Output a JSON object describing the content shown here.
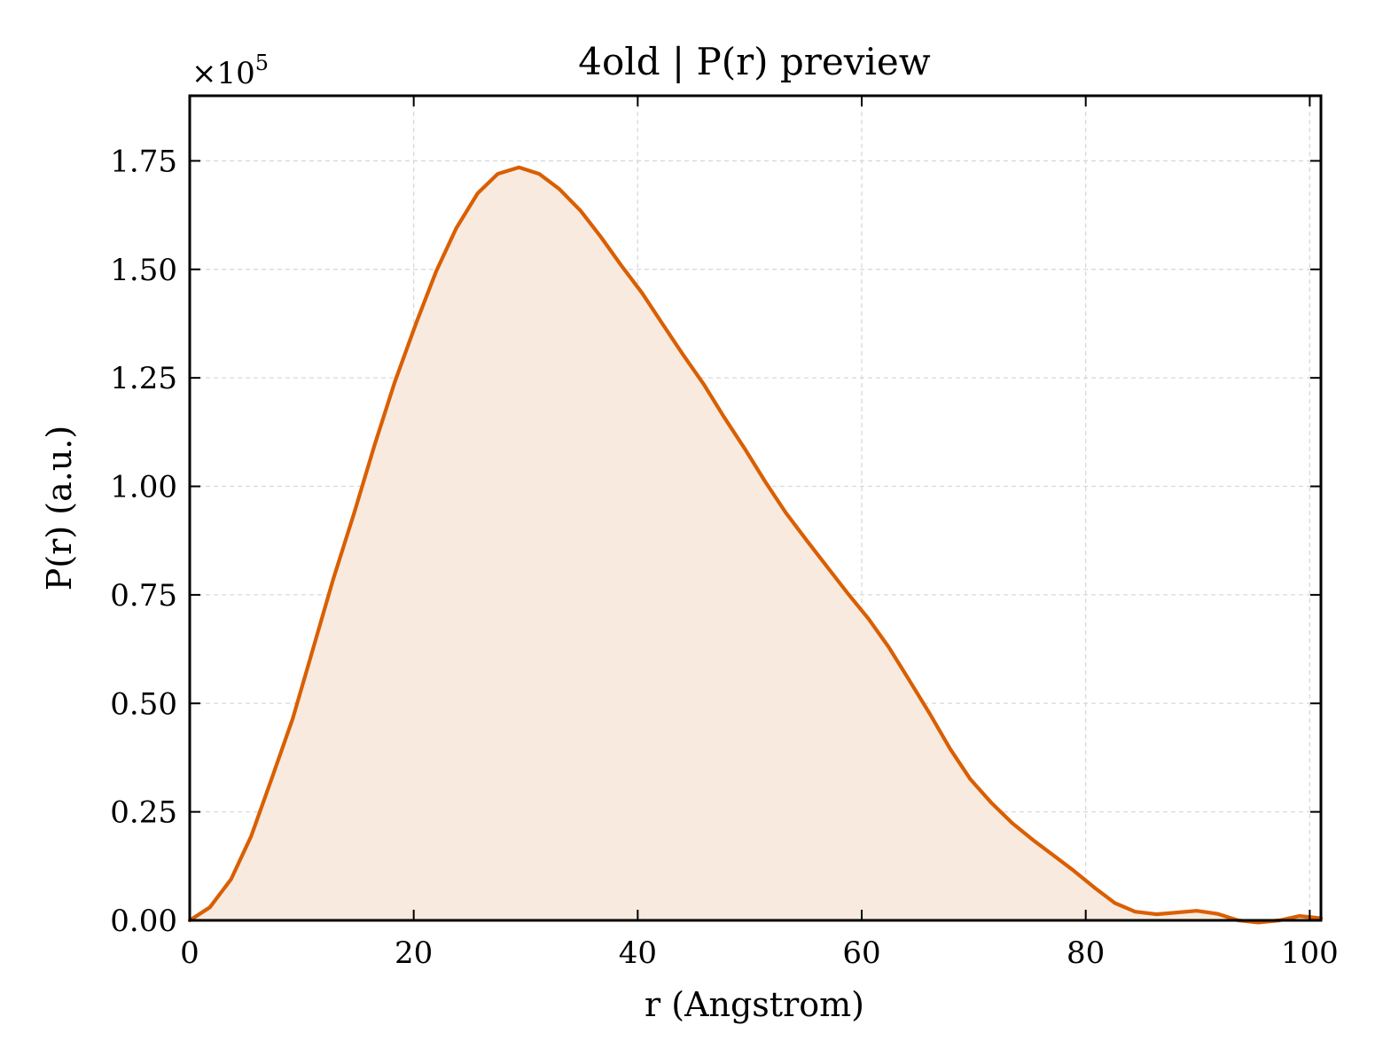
{
  "chart_data": {
    "type": "area",
    "title": "4old | P(r) preview",
    "xlabel": "r (Angstrom)",
    "ylabel": "P(r) (a.u.)",
    "y_multiplier_label": "×10",
    "y_multiplier_exponent": "5",
    "xlim": [
      0,
      101
    ],
    "ylim": [
      0,
      1.9
    ],
    "x_ticks": [
      0,
      20,
      40,
      60,
      80,
      100
    ],
    "x_tick_labels": [
      "0",
      "20",
      "40",
      "60",
      "80",
      "100"
    ],
    "y_ticks": [
      0,
      0.25,
      0.5,
      0.75,
      1.0,
      1.25,
      1.5,
      1.75
    ],
    "y_tick_labels": [
      "0.00",
      "0.25",
      "0.50",
      "0.75",
      "1.00",
      "1.25",
      "1.50",
      "1.75"
    ],
    "grid": true,
    "line_color": "#d95f02",
    "fill_color": "#f8eadf",
    "series": [
      {
        "x": [
          0,
          1.8,
          3.7,
          5.5,
          7.3,
          9.2,
          11.0,
          12.8,
          14.7,
          16.5,
          18.3,
          20.2,
          22.0,
          23.8,
          25.7,
          27.5,
          29.4,
          31.2,
          33.0,
          34.9,
          36.7,
          38.5,
          40.4,
          42.2,
          44.0,
          45.9,
          47.7,
          49.6,
          51.4,
          53.2,
          55.1,
          56.9,
          58.7,
          60.6,
          62.4,
          64.2,
          66.1,
          67.9,
          69.7,
          71.6,
          73.4,
          75.3,
          77.1,
          78.9,
          80.8,
          82.6,
          84.4,
          86.3,
          88.1,
          89.9,
          91.8,
          93.6,
          95.4,
          97.3,
          99.1,
          101.0
        ],
        "y": [
          0.0,
          0.03,
          0.095,
          0.195,
          0.325,
          0.465,
          0.625,
          0.785,
          0.94,
          1.095,
          1.24,
          1.375,
          1.495,
          1.595,
          1.675,
          1.72,
          1.735,
          1.72,
          1.685,
          1.635,
          1.575,
          1.51,
          1.445,
          1.375,
          1.305,
          1.235,
          1.16,
          1.085,
          1.01,
          0.94,
          0.875,
          0.815,
          0.755,
          0.695,
          0.63,
          0.555,
          0.475,
          0.395,
          0.325,
          0.27,
          0.225,
          0.185,
          0.15,
          0.115,
          0.075,
          0.04,
          0.02,
          0.014,
          0.018,
          0.022,
          0.015,
          0.0,
          -0.005,
          0.0,
          0.01,
          0.005
        ]
      }
    ]
  }
}
